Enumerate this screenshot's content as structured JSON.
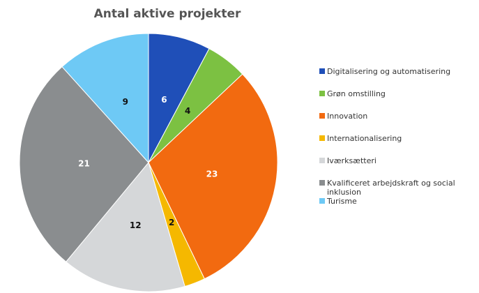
{
  "chart_data": {
    "type": "pie",
    "title": "Antal aktive projekter",
    "categories": [
      "Digitalisering og automatisering",
      "Grøn omstilling",
      "Innovation",
      "Internationalisering",
      "Iværksætteri",
      "Kvalificeret arbejdskraft og social inklusion",
      "Turisme"
    ],
    "values": [
      6,
      4,
      23,
      2,
      12,
      21,
      9
    ],
    "colors": [
      "#1f4fb8",
      "#7cc142",
      "#f26a10",
      "#f5b800",
      "#d5d7d9",
      "#8a8d8f",
      "#6ec9f5"
    ],
    "legend": "right"
  }
}
